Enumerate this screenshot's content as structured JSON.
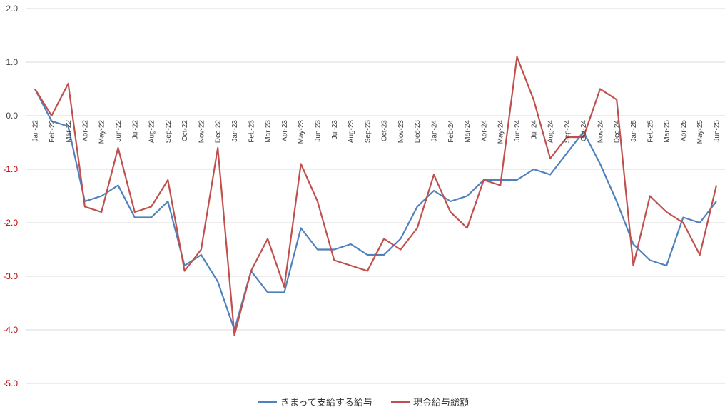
{
  "chart_data": {
    "type": "line",
    "title": "",
    "xlabel": "",
    "ylabel": "",
    "ylim": [
      -5.0,
      2.0
    ],
    "yticks": [
      2.0,
      1.0,
      0.0,
      -1.0,
      -2.0,
      -3.0,
      -4.0,
      -5.0
    ],
    "ytick_labels": [
      "2.0",
      "1.0",
      "0.0",
      "-1.0",
      "-2.0",
      "-3.0",
      "-4.0",
      "-5.0"
    ],
    "grid": true,
    "legend_position": "bottom",
    "negative_tick_color": "#c00000",
    "positive_tick_color": "#404040",
    "categories": [
      "Jan-22",
      "Feb-22",
      "Mar-22",
      "Apr-22",
      "May-22",
      "Jun-22",
      "Jul-22",
      "Aug-22",
      "Sep-22",
      "Oct-22",
      "Nov-22",
      "Dec-22",
      "Jan-23",
      "Feb-23",
      "Mar-23",
      "Apr-23",
      "May-23",
      "Jun-23",
      "Jul-23",
      "Aug-23",
      "Sep-23",
      "Oct-23",
      "Nov-23",
      "Dec-23",
      "Jan-24",
      "Feb-24",
      "Mar-24",
      "Apr-24",
      "May-24",
      "Jun-24",
      "Jul-24",
      "Aug-24",
      "Sep-24",
      "Oct-24",
      "Nov-24",
      "Dec-24",
      "Jan-25",
      "Feb-25",
      "Mar-25",
      "Apr-25",
      "May-25",
      "Jun-25"
    ],
    "series": [
      {
        "name": "きまって支給する給与",
        "color": "#4f81bd",
        "values": [
          0.5,
          -0.1,
          -0.2,
          -1.6,
          -1.5,
          -1.3,
          -1.9,
          -1.9,
          -1.6,
          -2.8,
          -2.6,
          -3.1,
          -4.0,
          -2.9,
          -3.3,
          -3.3,
          -2.1,
          -2.5,
          -2.5,
          -2.4,
          -2.6,
          -2.6,
          -2.3,
          -1.7,
          -1.4,
          -1.6,
          -1.5,
          -1.2,
          -1.2,
          -1.2,
          -1.0,
          -1.1,
          -0.7,
          -0.3,
          -0.9,
          -1.6,
          -2.4,
          -2.7,
          -2.8,
          -1.9,
          -2.0,
          -1.6
        ]
      },
      {
        "name": "現金給与総額",
        "color": "#c0504d",
        "values": [
          0.5,
          0.0,
          0.6,
          -1.7,
          -1.8,
          -0.6,
          -1.8,
          -1.7,
          -1.2,
          -2.9,
          -2.5,
          -0.6,
          -4.1,
          -2.9,
          -2.3,
          -3.2,
          -0.9,
          -1.6,
          -2.7,
          -2.8,
          -2.9,
          -2.3,
          -2.5,
          -2.1,
          -1.1,
          -1.8,
          -2.1,
          -1.2,
          -1.3,
          1.1,
          0.3,
          -0.8,
          -0.4,
          -0.4,
          0.5,
          0.3,
          -2.8,
          -1.5,
          -1.8,
          -2.0,
          -2.6,
          -1.3
        ]
      }
    ]
  }
}
